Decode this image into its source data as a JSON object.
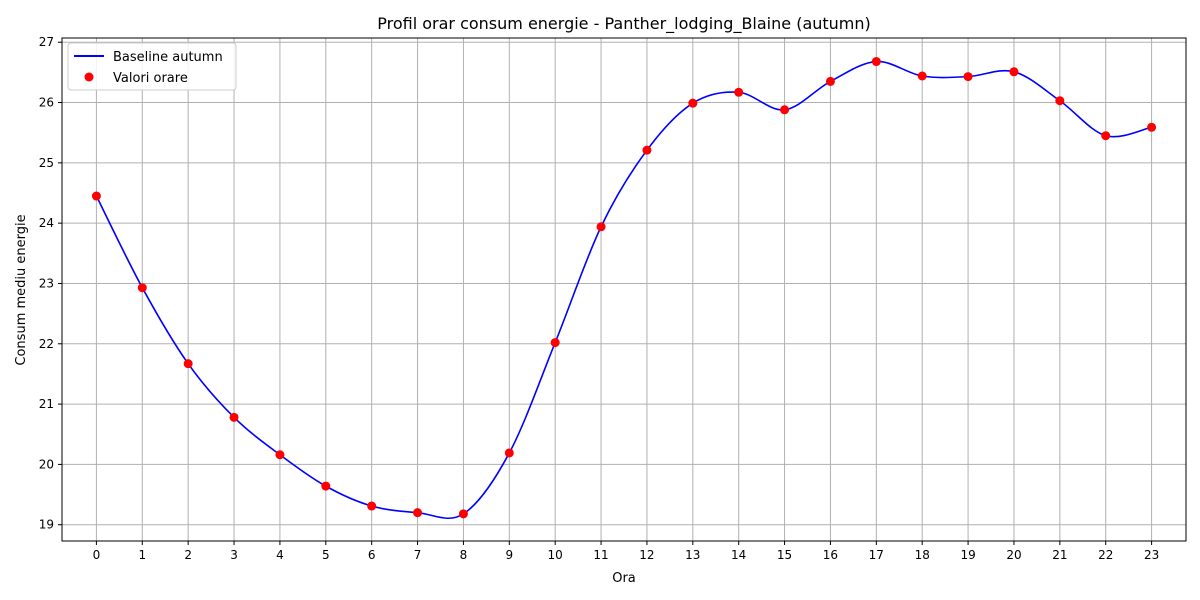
{
  "chart_data": {
    "type": "line",
    "title": "Profil orar consum energie - Panther_lodging_Blaine (autumn)",
    "xlabel": "Ora",
    "ylabel": "Consum mediu energie",
    "x": [
      0,
      1,
      2,
      3,
      4,
      5,
      6,
      7,
      8,
      9,
      10,
      11,
      12,
      13,
      14,
      15,
      16,
      17,
      18,
      19,
      20,
      21,
      22,
      23
    ],
    "xticks": [
      "0",
      "1",
      "2",
      "3",
      "4",
      "5",
      "6",
      "7",
      "8",
      "9",
      "10",
      "11",
      "12",
      "13",
      "14",
      "15",
      "16",
      "17",
      "18",
      "19",
      "20",
      "21",
      "22",
      "23"
    ],
    "yticks": [
      "19",
      "20",
      "21",
      "22",
      "23",
      "24",
      "25",
      "26",
      "27"
    ],
    "xlim": [
      -0.75,
      23.75
    ],
    "ylim": [
      18.73,
      27.07
    ],
    "grid": true,
    "legend_position": "top-left",
    "series": [
      {
        "name": "Baseline autumn",
        "kind": "line",
        "color": "#0000ff",
        "values": [
          24.45,
          22.93,
          21.67,
          20.78,
          20.16,
          19.64,
          19.31,
          19.2,
          19.18,
          20.19,
          22.02,
          23.94,
          25.21,
          25.99,
          26.17,
          25.88,
          26.35,
          26.68,
          26.44,
          26.43,
          26.51,
          26.03,
          25.45,
          25.59
        ]
      },
      {
        "name": "Valori orare",
        "kind": "scatter",
        "color": "#ff0000",
        "values": [
          24.45,
          22.93,
          21.67,
          20.78,
          20.16,
          19.64,
          19.31,
          19.2,
          19.18,
          20.19,
          22.02,
          23.94,
          25.21,
          25.99,
          26.17,
          25.88,
          26.35,
          26.68,
          26.44,
          26.43,
          26.51,
          26.03,
          25.45,
          25.59
        ]
      }
    ]
  }
}
